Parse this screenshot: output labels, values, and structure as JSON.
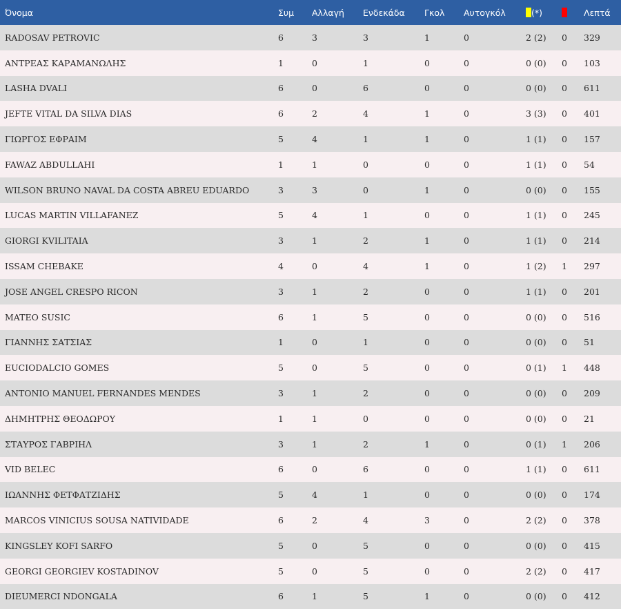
{
  "header": {
    "name": "Όνομα",
    "apps": "Συμ",
    "sub": "Αλλαγή",
    "lineup": "Ενδεκάδα",
    "goals": "Γκολ",
    "own_goals": "Αυτογκόλ",
    "yellow_suffix": "(*)",
    "yellow_color": "#ffff00",
    "red_color": "#ff0000",
    "minutes": "Λεπτά"
  },
  "rows": [
    {
      "name": "RADOSAV PETROVIC",
      "apps": "6",
      "sub": "3",
      "lineup": "3",
      "goals": "1",
      "own": "0",
      "yellow": "2 (2)",
      "red": "0",
      "minutes": "329"
    },
    {
      "name": "ΑΝΤΡΕΑΣ ΚΑΡΑΜΑΝΩΛΗΣ",
      "apps": "1",
      "sub": "0",
      "lineup": "1",
      "goals": "0",
      "own": "0",
      "yellow": "0 (0)",
      "red": "0",
      "minutes": "103"
    },
    {
      "name": "LASHA DVALI",
      "apps": "6",
      "sub": "0",
      "lineup": "6",
      "goals": "0",
      "own": "0",
      "yellow": "0 (0)",
      "red": "0",
      "minutes": "611"
    },
    {
      "name": "JEFTE VITAL DA SILVA DIAS",
      "apps": "6",
      "sub": "2",
      "lineup": "4",
      "goals": "1",
      "own": "0",
      "yellow": "3 (3)",
      "red": "0",
      "minutes": "401"
    },
    {
      "name": "ΓΙΩΡΓΟΣ ΕΦΡΑΙΜ",
      "apps": "5",
      "sub": "4",
      "lineup": "1",
      "goals": "1",
      "own": "0",
      "yellow": "1 (1)",
      "red": "0",
      "minutes": "157"
    },
    {
      "name": "FAWAZ ABDULLAHI",
      "apps": "1",
      "sub": "1",
      "lineup": "0",
      "goals": "0",
      "own": "0",
      "yellow": "1 (1)",
      "red": "0",
      "minutes": "54"
    },
    {
      "name": "WILSON BRUNO NAVAL DA COSTA ABREU EDUARDO",
      "apps": "3",
      "sub": "3",
      "lineup": "0",
      "goals": "1",
      "own": "0",
      "yellow": "0 (0)",
      "red": "0",
      "minutes": "155"
    },
    {
      "name": "LUCAS MARTIN VILLAFANEZ",
      "apps": "5",
      "sub": "4",
      "lineup": "1",
      "goals": "0",
      "own": "0",
      "yellow": "1 (1)",
      "red": "0",
      "minutes": "245"
    },
    {
      "name": "GIORGI KVILITAIA",
      "apps": "3",
      "sub": "1",
      "lineup": "2",
      "goals": "1",
      "own": "0",
      "yellow": "1 (1)",
      "red": "0",
      "minutes": "214"
    },
    {
      "name": "ISSAM CHEBAKE",
      "apps": "4",
      "sub": "0",
      "lineup": "4",
      "goals": "1",
      "own": "0",
      "yellow": "1 (2)",
      "red": "1",
      "minutes": "297"
    },
    {
      "name": "JOSE ANGEL CRESPO RICON",
      "apps": "3",
      "sub": "1",
      "lineup": "2",
      "goals": "0",
      "own": "0",
      "yellow": "1 (1)",
      "red": "0",
      "minutes": "201"
    },
    {
      "name": "MATEO SUSIC",
      "apps": "6",
      "sub": "1",
      "lineup": "5",
      "goals": "0",
      "own": "0",
      "yellow": "0 (0)",
      "red": "0",
      "minutes": "516"
    },
    {
      "name": "ΓΙΑΝΝΗΣ ΣΑΤΣΙΑΣ",
      "apps": "1",
      "sub": "0",
      "lineup": "1",
      "goals": "0",
      "own": "0",
      "yellow": "0 (0)",
      "red": "0",
      "minutes": "51"
    },
    {
      "name": "EUCIODALCIO GOMES",
      "apps": "5",
      "sub": "0",
      "lineup": "5",
      "goals": "0",
      "own": "0",
      "yellow": "0 (1)",
      "red": "1",
      "minutes": "448"
    },
    {
      "name": "ANTONIO MANUEL FERNANDES MENDES",
      "apps": "3",
      "sub": "1",
      "lineup": "2",
      "goals": "0",
      "own": "0",
      "yellow": "0 (0)",
      "red": "0",
      "minutes": "209"
    },
    {
      "name": "ΔΗΜΗΤΡΗΣ ΘΕΟΔΩΡΟΥ",
      "apps": "1",
      "sub": "1",
      "lineup": "0",
      "goals": "0",
      "own": "0",
      "yellow": "0 (0)",
      "red": "0",
      "minutes": "21"
    },
    {
      "name": "ΣΤΑΥΡΟΣ ΓΑΒΡΙΗΛ",
      "apps": "3",
      "sub": "1",
      "lineup": "2",
      "goals": "1",
      "own": "0",
      "yellow": "0 (1)",
      "red": "1",
      "minutes": "206"
    },
    {
      "name": "VID BELEC",
      "apps": "6",
      "sub": "0",
      "lineup": "6",
      "goals": "0",
      "own": "0",
      "yellow": "1 (1)",
      "red": "0",
      "minutes": "611"
    },
    {
      "name": "ΙΩΑΝΝΗΣ ΦΕΤΦΑΤΖΙΔΗΣ",
      "apps": "5",
      "sub": "4",
      "lineup": "1",
      "goals": "0",
      "own": "0",
      "yellow": "0 (0)",
      "red": "0",
      "minutes": "174"
    },
    {
      "name": "MARCOS VINICIUS SOUSA NATIVIDADE",
      "apps": "6",
      "sub": "2",
      "lineup": "4",
      "goals": "3",
      "own": "0",
      "yellow": "2 (2)",
      "red": "0",
      "minutes": "378"
    },
    {
      "name": "KINGSLEY KOFI SARFO",
      "apps": "5",
      "sub": "0",
      "lineup": "5",
      "goals": "0",
      "own": "0",
      "yellow": "0 (0)",
      "red": "0",
      "minutes": "415"
    },
    {
      "name": "GEORGI GEORGIEV KOSTADINOV",
      "apps": "5",
      "sub": "0",
      "lineup": "5",
      "goals": "0",
      "own": "0",
      "yellow": "2 (2)",
      "red": "0",
      "minutes": "417"
    },
    {
      "name": "DIEUMERCI NDONGALA",
      "apps": "6",
      "sub": "1",
      "lineup": "5",
      "goals": "1",
      "own": "0",
      "yellow": "0 (0)",
      "red": "0",
      "minutes": "412"
    }
  ]
}
